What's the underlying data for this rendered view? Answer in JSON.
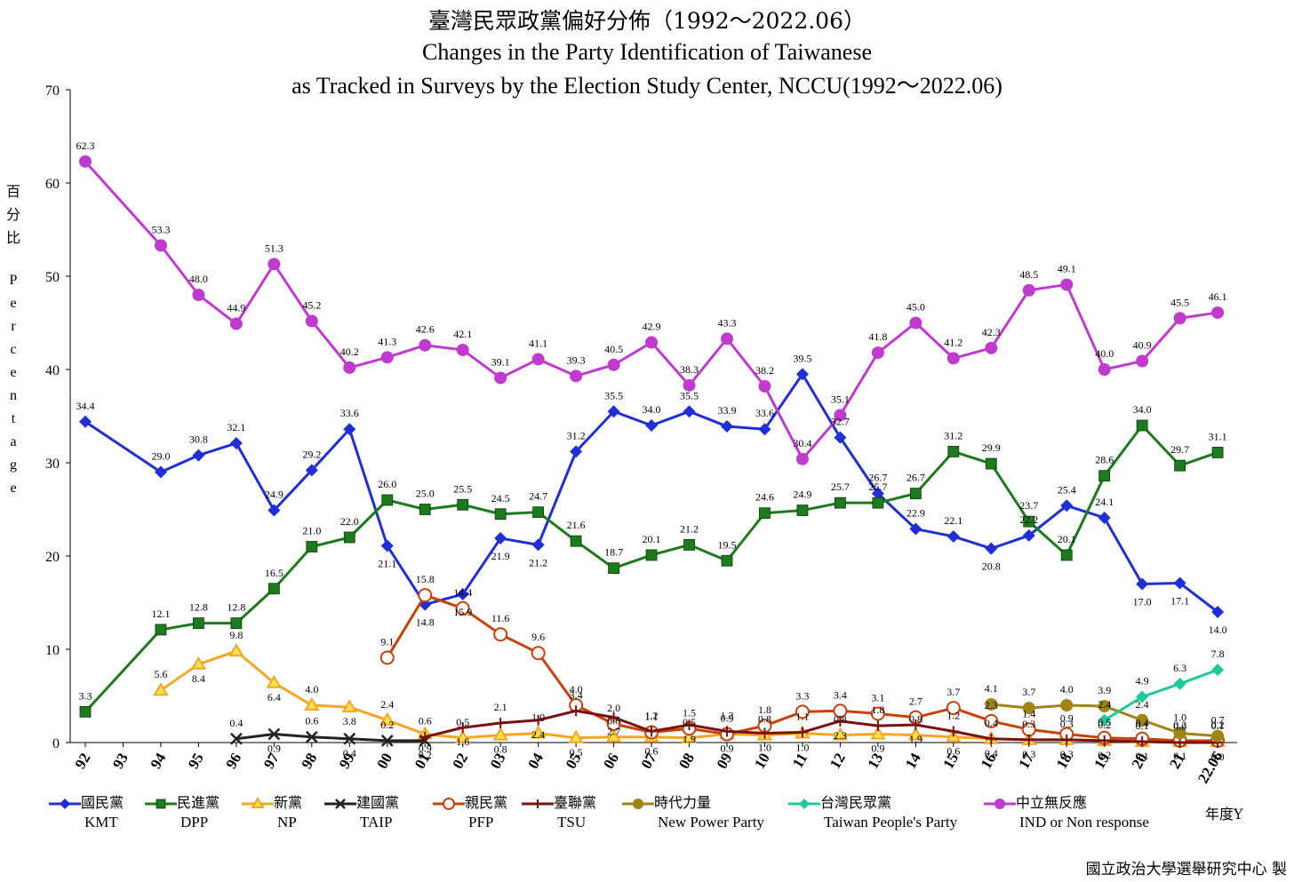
{
  "title": {
    "cn": "臺灣民眾政黨偏好分佈（1992～2022.06）",
    "en1": "Changes in the Party Identification of Taiwanese",
    "en2": "as Tracked in Surveys by the Election Study Center, NCCU(1992～2022.06)"
  },
  "ylabel": {
    "cn": "百分比",
    "en": "Percentage"
  },
  "xunit_label": "年度Y",
  "credit": "國立政治大學選舉研究中心 製",
  "chart_data": {
    "type": "line",
    "title": "臺灣民眾政黨偏好分佈（1992～2022.06） Changes in the Party Identification of Taiwanese as Tracked in Surveys by the Election Study Center, NCCU(1992～2022.06)",
    "xlabel": "年度Y",
    "ylabel": "百分比 Percentage",
    "ylim": [
      0,
      70
    ],
    "yticks": [
      0,
      10,
      20,
      30,
      40,
      50,
      60,
      70
    ],
    "grid": false,
    "legend_position": "bottom",
    "x_ticks": [
      "92",
      "93",
      "94",
      "95",
      "96",
      "97",
      "98",
      "99",
      "00",
      "01",
      "02",
      "03",
      "04",
      "05",
      "06",
      "07",
      "08",
      "09",
      "10",
      "11",
      "12",
      "13",
      "14",
      "15",
      "16",
      "17",
      "18",
      "19",
      "20",
      "21",
      "22.06"
    ],
    "series": [
      {
        "name_cn": "國民黨",
        "name": "KMT",
        "color": "#1f2ed6",
        "marker": "diamond",
        "points": [
          [
            0,
            34.4
          ],
          [
            2,
            29.0
          ],
          [
            3,
            30.8
          ],
          [
            4,
            32.1
          ],
          [
            5,
            24.9
          ],
          [
            6,
            29.2
          ],
          [
            7,
            33.6
          ],
          [
            8,
            21.1
          ],
          [
            9,
            14.8
          ],
          [
            10,
            15.9
          ],
          [
            11,
            21.9
          ],
          [
            12,
            21.2
          ],
          [
            13,
            31.2
          ],
          [
            14,
            35.5
          ],
          [
            15,
            34.0
          ],
          [
            16,
            35.5
          ],
          [
            17,
            33.9
          ],
          [
            18,
            33.6
          ],
          [
            19,
            39.5
          ],
          [
            20,
            32.7
          ],
          [
            21,
            26.7
          ],
          [
            22,
            22.9
          ],
          [
            23,
            22.1
          ],
          [
            24,
            20.8
          ],
          [
            25,
            22.2
          ],
          [
            26,
            25.4
          ],
          [
            27,
            24.1
          ],
          [
            28,
            17.0
          ],
          [
            29,
            17.1
          ],
          [
            30,
            14.0
          ]
        ]
      },
      {
        "name_cn": "民進黨",
        "name": "DPP",
        "color": "#1d7a1d",
        "marker": "square",
        "points": [
          [
            0,
            3.3
          ],
          [
            2,
            12.1
          ],
          [
            3,
            12.8
          ],
          [
            4,
            12.8
          ],
          [
            5,
            16.5
          ],
          [
            6,
            21.0
          ],
          [
            7,
            22.0
          ],
          [
            8,
            26.0
          ],
          [
            9,
            25.0
          ],
          [
            10,
            25.5
          ],
          [
            11,
            24.5
          ],
          [
            12,
            24.7
          ],
          [
            13,
            21.6
          ],
          [
            14,
            18.7
          ],
          [
            15,
            20.1
          ],
          [
            16,
            21.2
          ],
          [
            17,
            19.5
          ],
          [
            18,
            24.6
          ],
          [
            19,
            24.9
          ],
          [
            20,
            25.7
          ],
          [
            21,
            25.7
          ],
          [
            22,
            26.7
          ],
          [
            23,
            31.2
          ],
          [
            24,
            29.9
          ],
          [
            25,
            23.7
          ],
          [
            26,
            20.1
          ],
          [
            27,
            28.6
          ],
          [
            28,
            34.0
          ],
          [
            29,
            29.7
          ],
          [
            30,
            31.1
          ]
        ]
      },
      {
        "name_cn": "新黨",
        "name": "NP",
        "color": "#f5a623",
        "marker": "triangle",
        "points": [
          [
            2,
            5.6
          ],
          [
            3,
            8.4
          ],
          [
            4,
            9.8
          ],
          [
            5,
            6.4
          ],
          [
            6,
            4.0
          ],
          [
            7,
            3.8
          ],
          [
            8,
            2.4
          ],
          [
            9,
            0.9
          ],
          [
            10,
            0.5
          ],
          [
            11,
            0.8
          ],
          [
            12,
            1.0
          ],
          [
            13,
            0.5
          ],
          [
            14,
            0.6
          ],
          [
            15,
            0.6
          ],
          [
            16,
            0.5
          ],
          [
            17,
            0.9
          ],
          [
            18,
            0.8
          ],
          [
            19,
            1.0
          ],
          [
            20,
            0.8
          ],
          [
            21,
            0.9
          ],
          [
            22,
            0.8
          ],
          [
            23,
            0.6
          ],
          [
            24,
            0.4
          ],
          [
            25,
            0.3
          ],
          [
            26,
            0.3
          ],
          [
            27,
            0.2
          ],
          [
            28,
            0.1
          ],
          [
            29,
            0.1
          ],
          [
            30,
            0.1
          ]
        ]
      },
      {
        "name_cn": "建國黨",
        "name": "TAIP",
        "color": "#222222",
        "marker": "x",
        "points": [
          [
            4,
            0.4
          ],
          [
            5,
            0.9
          ],
          [
            6,
            0.6
          ],
          [
            7,
            0.4
          ],
          [
            8,
            0.2
          ],
          [
            9,
            0.2
          ]
        ]
      },
      {
        "name_cn": "親民黨",
        "name": "PFP",
        "color": "#c8410a",
        "marker": "circle-open",
        "points": [
          [
            8,
            9.1
          ],
          [
            9,
            15.8
          ],
          [
            10,
            14.4
          ],
          [
            11,
            11.6
          ],
          [
            12,
            9.6
          ],
          [
            13,
            4.0
          ],
          [
            14,
            2.0
          ],
          [
            15,
            1.1
          ],
          [
            16,
            1.5
          ],
          [
            17,
            0.9
          ],
          [
            18,
            1.8
          ],
          [
            19,
            3.3
          ],
          [
            20,
            3.4
          ],
          [
            21,
            3.1
          ],
          [
            22,
            2.7
          ],
          [
            23,
            3.7
          ],
          [
            24,
            2.3
          ],
          [
            25,
            1.4
          ],
          [
            26,
            0.9
          ],
          [
            27,
            0.5
          ],
          [
            28,
            0.4
          ],
          [
            29,
            0.2
          ],
          [
            30,
            0.2
          ]
        ]
      },
      {
        "name_cn": "臺聯黨",
        "name": "TSU",
        "color": "#7a1010",
        "marker": "plus",
        "points": [
          [
            9,
            0.6
          ],
          [
            10,
            1.6
          ],
          [
            11,
            2.1
          ],
          [
            12,
            2.4
          ],
          [
            13,
            3.4
          ],
          [
            14,
            2.7
          ],
          [
            15,
            1.2
          ],
          [
            16,
            1.9
          ],
          [
            17,
            1.2
          ],
          [
            18,
            1.0
          ],
          [
            19,
            1.1
          ],
          [
            20,
            2.3
          ],
          [
            21,
            1.8
          ],
          [
            22,
            1.9
          ],
          [
            23,
            1.2
          ],
          [
            24,
            0.4
          ],
          [
            25,
            0.3
          ],
          [
            26,
            0.3
          ],
          [
            27,
            0.2
          ],
          [
            28,
            0.1
          ],
          [
            29,
            0.0
          ],
          [
            30,
            0.0
          ]
        ]
      },
      {
        "name_cn": "時代力量",
        "name": "New Power Party",
        "color": "#a08515",
        "marker": "circle",
        "points": [
          [
            24,
            4.1
          ],
          [
            25,
            3.7
          ],
          [
            26,
            4.0
          ],
          [
            27,
            3.9
          ],
          [
            28,
            2.4
          ],
          [
            29,
            1.0
          ],
          [
            30,
            0.7
          ]
        ]
      },
      {
        "name_cn": "台灣民眾黨",
        "name": "Taiwan People's Party",
        "color": "#1ec99a",
        "marker": "diamond",
        "points": [
          [
            27,
            2.4
          ],
          [
            28,
            4.9
          ],
          [
            29,
            6.3
          ],
          [
            30,
            7.8
          ]
        ]
      },
      {
        "name_cn": "中立無反應",
        "name": "IND or Non response",
        "color": "#c03ad0",
        "marker": "circle",
        "points": [
          [
            0,
            62.3
          ],
          [
            2,
            53.3
          ],
          [
            3,
            48.0
          ],
          [
            4,
            44.9
          ],
          [
            5,
            51.3
          ],
          [
            6,
            45.2
          ],
          [
            7,
            40.2
          ],
          [
            8,
            41.3
          ],
          [
            9,
            42.6
          ],
          [
            10,
            42.1
          ],
          [
            11,
            39.1
          ],
          [
            12,
            41.1
          ],
          [
            13,
            39.3
          ],
          [
            14,
            40.5
          ],
          [
            15,
            42.9
          ],
          [
            16,
            38.3
          ],
          [
            17,
            43.3
          ],
          [
            18,
            38.2
          ],
          [
            19,
            30.4
          ],
          [
            20,
            35.1
          ],
          [
            21,
            41.8
          ],
          [
            22,
            45.0
          ],
          [
            23,
            41.2
          ],
          [
            24,
            42.3
          ],
          [
            25,
            48.5
          ],
          [
            26,
            49.1
          ],
          [
            27,
            40.0
          ],
          [
            28,
            40.9
          ],
          [
            29,
            45.5
          ],
          [
            30,
            46.1
          ]
        ]
      }
    ]
  }
}
